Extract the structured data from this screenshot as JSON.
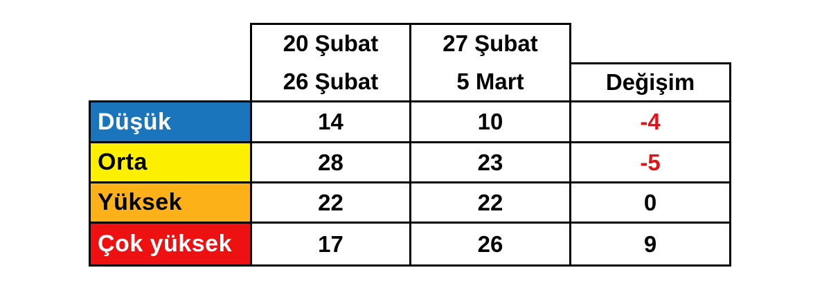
{
  "table": {
    "header": {
      "period1": {
        "line1": "20 Şubat",
        "line2": "26 Şubat"
      },
      "period2": {
        "line1": "27 Şubat",
        "line2": "5 Mart"
      },
      "change_label": "Değişim"
    },
    "rows": [
      {
        "label": "Düşük",
        "bg": "#1B75BC",
        "label_color": "#FFFFFF",
        "v1": "14",
        "v2": "10",
        "change": "-4",
        "change_color": "#E01319"
      },
      {
        "label": "Orta",
        "bg": "#FCF000",
        "label_color": "#000000",
        "v1": "28",
        "v2": "23",
        "change": "-5",
        "change_color": "#E01319"
      },
      {
        "label": "Yüksek",
        "bg": "#FBB117",
        "label_color": "#000000",
        "v1": "22",
        "v2": "22",
        "change": "0",
        "change_color": "#000000"
      },
      {
        "label": "Çok yüksek",
        "bg": "#EE1111",
        "label_color": "#FFFFFF",
        "v1": "17",
        "v2": "26",
        "change": "9",
        "change_color": "#000000"
      }
    ]
  },
  "chart_data": {
    "type": "table",
    "title": "",
    "columns": [
      "",
      "20 Şubat - 26 Şubat",
      "27 Şubat - 5 Mart",
      "Değişim"
    ],
    "categories": [
      "Düşük",
      "Orta",
      "Yüksek",
      "Çok yüksek"
    ],
    "series": [
      {
        "name": "20 Şubat - 26 Şubat",
        "values": [
          14,
          28,
          22,
          17
        ]
      },
      {
        "name": "27 Şubat - 5 Mart",
        "values": [
          10,
          23,
          22,
          26
        ]
      },
      {
        "name": "Değişim",
        "values": [
          -4,
          -5,
          0,
          9
        ]
      }
    ],
    "row_colors": [
      "#1B75BC",
      "#FCF000",
      "#FBB117",
      "#EE1111"
    ],
    "negative_change_color": "#E01319",
    "legend_position": "none",
    "grid": "table-borders"
  }
}
